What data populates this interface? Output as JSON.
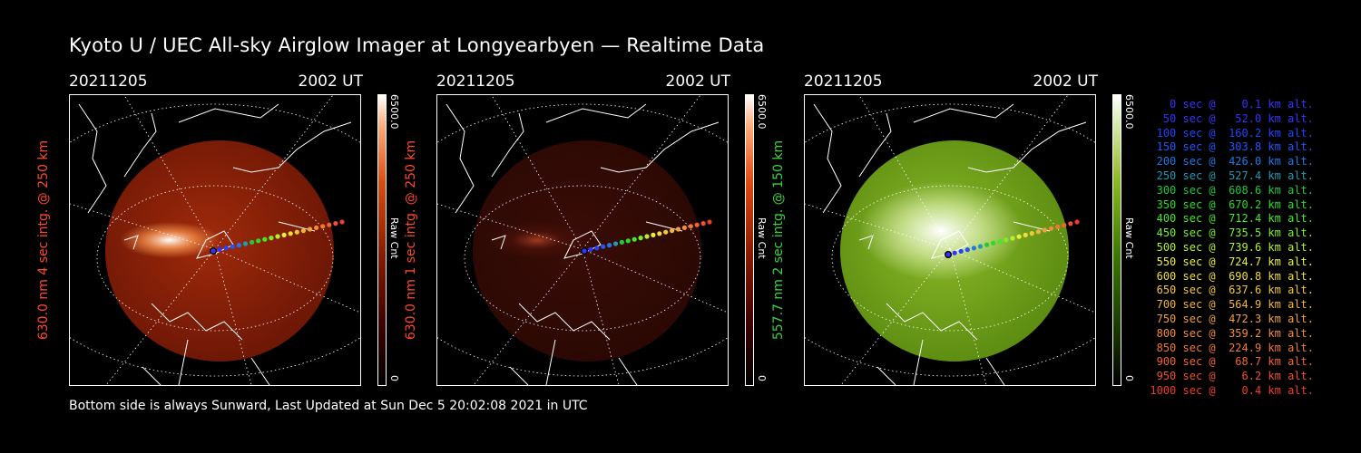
{
  "title": "Kyoto U / UEC All-sky Airglow Imager at Longyearbyen — Realtime Data",
  "footer": "Bottom side is always Sunward, Last Updated at Sun Dec  5 20:02:08 2021 in UTC",
  "panels": [
    {
      "date": "20211205",
      "time": "2002 UT",
      "ylabel": "630.0 nm 4 sec intg. @ 250 km",
      "label_color": "#ff4a2a",
      "cbar_max": "6500.0",
      "cbar_min": "0",
      "cbar_unit": "Raw Cnt",
      "palette": "red"
    },
    {
      "date": "20211205",
      "time": "2002 UT",
      "ylabel": "630.0 nm 1 sec intg. @ 250 km",
      "label_color": "#ff4a2a",
      "cbar_max": "6500.0",
      "cbar_min": "0",
      "cbar_unit": "Raw Cnt",
      "palette": "red-dim"
    },
    {
      "date": "20211205",
      "time": "2002 UT",
      "ylabel": "557.7 nm 2 sec intg. @ 150 km",
      "label_color": "#3cd23c",
      "cbar_max": "6500.0",
      "cbar_min": "0",
      "cbar_unit": "Raw Cnt",
      "palette": "green"
    }
  ],
  "legend": [
    {
      "text": "0 sec @    0.1 km alt.",
      "color": "#3333ff"
    },
    {
      "text": "50 sec @   52.0 km alt.",
      "color": "#3333ff"
    },
    {
      "text": "100 sec @  160.2 km alt.",
      "color": "#2244ff"
    },
    {
      "text": "150 sec @  303.8 km alt.",
      "color": "#2255ff"
    },
    {
      "text": "200 sec @  426.0 km alt.",
      "color": "#1e78e6"
    },
    {
      "text": "250 sec @  527.4 km alt.",
      "color": "#1e9ab4"
    },
    {
      "text": "300 sec @  608.6 km alt.",
      "color": "#22c83c"
    },
    {
      "text": "350 sec @  670.2 km alt.",
      "color": "#28dc28"
    },
    {
      "text": "400 sec @  712.4 km alt.",
      "color": "#46e628"
    },
    {
      "text": "450 sec @  735.5 km alt.",
      "color": "#78f028"
    },
    {
      "text": "500 sec @  739.6 km alt.",
      "color": "#b4f032"
    },
    {
      "text": "550 sec @  724.7 km alt.",
      "color": "#e6f03c"
    },
    {
      "text": "600 sec @  690.8 km alt.",
      "color": "#f0dc3c"
    },
    {
      "text": "650 sec @  637.6 km alt.",
      "color": "#f0c83c"
    },
    {
      "text": "700 sec @  564.9 km alt.",
      "color": "#f0b43c"
    },
    {
      "text": "750 sec @  472.3 km alt.",
      "color": "#f0a03c"
    },
    {
      "text": "800 sec @  359.2 km alt.",
      "color": "#f08c3c"
    },
    {
      "text": "850 sec @  224.9 km alt.",
      "color": "#f07832"
    },
    {
      "text": "900 sec @   68.7 km alt.",
      "color": "#f06432"
    },
    {
      "text": "950 sec @    6.2 km alt.",
      "color": "#f05032"
    },
    {
      "text": "1000 sec @    0.4 km alt.",
      "color": "#f03c28"
    }
  ]
}
